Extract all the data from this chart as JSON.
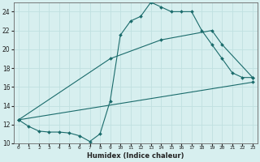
{
  "xlabel": "Humidex (Indice chaleur)",
  "bg_color": "#d7efef",
  "line_color": "#1a6b6b",
  "grid_color": "#c0e0e0",
  "xmin": -0.5,
  "xmax": 23.5,
  "ymin": 10,
  "ymax": 25,
  "yticks": [
    10,
    12,
    14,
    16,
    18,
    20,
    22,
    24
  ],
  "xticks": [
    0,
    1,
    2,
    3,
    4,
    5,
    6,
    7,
    8,
    9,
    10,
    11,
    12,
    13,
    14,
    15,
    16,
    17,
    18,
    19,
    20,
    21,
    22,
    23
  ],
  "line1_x": [
    0,
    1,
    2,
    3,
    4,
    5,
    6,
    7,
    8,
    9,
    10,
    11,
    12,
    13,
    14,
    15,
    16,
    17,
    18,
    19,
    20,
    21,
    22,
    23
  ],
  "line1_y": [
    12.5,
    11.8,
    11.3,
    11.2,
    11.2,
    11.1,
    10.8,
    10.2,
    11.0,
    14.5,
    21.5,
    23.0,
    23.5,
    25.0,
    24.5,
    24.0,
    24.0,
    24.0,
    22.0,
    20.5,
    19.0,
    17.5,
    17.0,
    17.0
  ],
  "line2_x": [
    0,
    9,
    14,
    19,
    20,
    23
  ],
  "line2_y": [
    12.5,
    19.0,
    21.0,
    22.0,
    20.5,
    17.0
  ],
  "line3_x": [
    0,
    23
  ],
  "line3_y": [
    12.5,
    16.5
  ]
}
